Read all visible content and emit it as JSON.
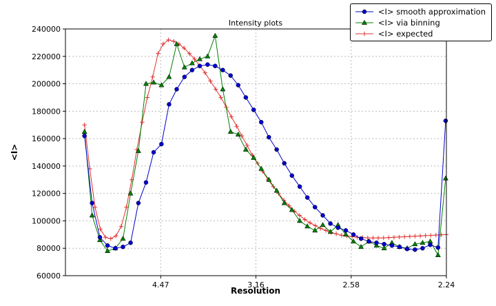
{
  "chart_data": {
    "type": "line",
    "title": "Intensity plots",
    "xlabel": "Resolution",
    "ylabel": "<I>",
    "xlim": [
      0,
      0.2
    ],
    "ylim": [
      60000,
      240000
    ],
    "grid": true,
    "legend_position": "upper right",
    "x_axis_units": "1/d^2 (tick labels show resolution d)",
    "x_ticks": [
      {
        "x": 0.05,
        "label": "4.47"
      },
      {
        "x": 0.1,
        "label": "3.16"
      },
      {
        "x": 0.15,
        "label": "2.58"
      },
      {
        "x": 0.2,
        "label": "2.24"
      }
    ],
    "y_ticks": [
      60000,
      80000,
      100000,
      120000,
      140000,
      160000,
      180000,
      200000,
      220000,
      240000
    ],
    "series": [
      {
        "name": "<I> smooth approximation",
        "color": "#0000cc",
        "marker": "circle",
        "x": [
          0.01,
          0.014,
          0.0181,
          0.0221,
          0.0262,
          0.0302,
          0.0342,
          0.0383,
          0.0423,
          0.0463,
          0.0504,
          0.0544,
          0.0584,
          0.0625,
          0.0665,
          0.0705,
          0.0746,
          0.0786,
          0.0826,
          0.0867,
          0.0907,
          0.0947,
          0.0988,
          0.1028,
          0.1068,
          0.1109,
          0.1149,
          0.1189,
          0.123,
          0.127,
          0.131,
          0.1351,
          0.1391,
          0.1431,
          0.1472,
          0.1512,
          0.1552,
          0.1593,
          0.1633,
          0.1673,
          0.1714,
          0.1754,
          0.1794,
          0.1835,
          0.1875,
          0.1915,
          0.1956,
          0.1996
        ],
        "y": [
          162000,
          113000,
          88000,
          82000,
          80000,
          81000,
          84000,
          113000,
          128000,
          150000,
          156000,
          185000,
          196000,
          205000,
          210000,
          213000,
          214000,
          213000,
          210000,
          206000,
          199000,
          190000,
          181000,
          172000,
          161000,
          152000,
          142000,
          133000,
          125000,
          117000,
          110000,
          104000,
          98000,
          95000,
          93000,
          90000,
          87000,
          85000,
          84000,
          83000,
          82000,
          81000,
          79500,
          79000,
          80000,
          82500,
          80500,
          173000
        ]
      },
      {
        "name": "<I> via binning",
        "color": "#007f00",
        "marker": "triangle",
        "x": [
          0.01,
          0.014,
          0.0181,
          0.0221,
          0.0262,
          0.0302,
          0.0342,
          0.0383,
          0.0423,
          0.0463,
          0.0504,
          0.0544,
          0.0584,
          0.0625,
          0.0665,
          0.0705,
          0.0746,
          0.0786,
          0.0826,
          0.0867,
          0.0907,
          0.0947,
          0.0988,
          0.1028,
          0.1068,
          0.1109,
          0.1149,
          0.1189,
          0.123,
          0.127,
          0.131,
          0.1351,
          0.1391,
          0.1431,
          0.1472,
          0.1512,
          0.1552,
          0.1593,
          0.1633,
          0.1673,
          0.1714,
          0.1754,
          0.1794,
          0.1835,
          0.1875,
          0.1915,
          0.1956,
          0.1996
        ],
        "y": [
          165000,
          104000,
          86000,
          78000,
          80000,
          87000,
          120000,
          151000,
          200000,
          201000,
          199000,
          205000,
          229000,
          212000,
          215000,
          218000,
          220000,
          235000,
          196000,
          165000,
          163000,
          152000,
          146000,
          138000,
          130000,
          122000,
          113000,
          108000,
          100000,
          96000,
          93000,
          97000,
          92000,
          97000,
          90000,
          85000,
          81000,
          85000,
          82000,
          80000,
          84000,
          81000,
          80000,
          83000,
          84000,
          85000,
          75000,
          131000
        ]
      },
      {
        "name": "<I> expected",
        "color": "#e03030",
        "marker": "plus",
        "x": [
          0.01,
          0.0128,
          0.0155,
          0.0183,
          0.021,
          0.0238,
          0.0265,
          0.0293,
          0.032,
          0.0348,
          0.0375,
          0.0403,
          0.043,
          0.0458,
          0.0486,
          0.0513,
          0.0541,
          0.0568,
          0.0596,
          0.0623,
          0.0651,
          0.0678,
          0.0706,
          0.0733,
          0.0761,
          0.0789,
          0.0816,
          0.0844,
          0.0871,
          0.0899,
          0.0926,
          0.0954,
          0.0981,
          0.1009,
          0.1036,
          0.1064,
          0.1091,
          0.1119,
          0.1147,
          0.1174,
          0.1202,
          0.1229,
          0.1257,
          0.1284,
          0.1312,
          0.1339,
          0.1367,
          0.1394,
          0.1422,
          0.145,
          0.1477,
          0.1505,
          0.1532,
          0.156,
          0.1587,
          0.1615,
          0.1642,
          0.167,
          0.1697,
          0.1725,
          0.1752,
          0.178,
          0.1808,
          0.1835,
          0.1863,
          0.189,
          0.1918,
          0.1945,
          0.1973,
          0.2
        ],
        "y": [
          170000,
          138000,
          110000,
          94000,
          88000,
          87000,
          89000,
          96000,
          110000,
          130000,
          152000,
          172000,
          190000,
          205000,
          222000,
          229000,
          232000,
          231000,
          229000,
          226000,
          222000,
          218000,
          213000,
          208000,
          202000,
          196000,
          190000,
          183000,
          176000,
          169000,
          162000,
          155000,
          148000,
          142000,
          136000,
          130000,
          125000,
          120000,
          115000,
          111000,
          107000,
          104000,
          101000,
          98500,
          96500,
          94500,
          93000,
          91500,
          90500,
          89500,
          89000,
          88500,
          88000,
          87800,
          87600,
          87500,
          87500,
          87600,
          87800,
          88000,
          88200,
          88400,
          88600,
          88800,
          89000,
          89200,
          89400,
          89600,
          89800,
          90000
        ]
      }
    ]
  }
}
